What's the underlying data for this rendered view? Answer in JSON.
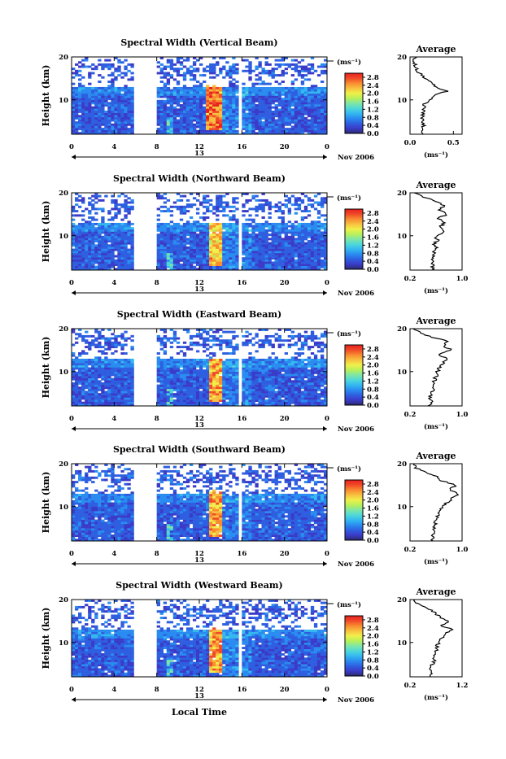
{
  "colors": {
    "colorbar": [
      "#2a2a6e",
      "#3b3bc8",
      "#2e5fe0",
      "#2a8cf0",
      "#34b8f0",
      "#4fd8d8",
      "#7fe6a6",
      "#b8f05a",
      "#f0f04a",
      "#f8c040",
      "#f88c30",
      "#f04a28",
      "#e82020"
    ],
    "heatmap_low": "#2f57d8",
    "heatmap_high": "#e83020",
    "axis": "#000000",
    "line": "#000000"
  },
  "chart_data": [
    {
      "type": "heatmap",
      "title": "Spectral Width (Vertical Beam)",
      "ylabel": "Height (km)",
      "xlabel": "",
      "x_ticks": [
        "0",
        "4",
        "8",
        "12",
        "16",
        "20",
        "0"
      ],
      "x_range": [
        0,
        24
      ],
      "date_marker": "13",
      "date_label": "Nov 2006",
      "y_ticks": [
        "20",
        "10"
      ],
      "y_range": [
        2,
        20
      ],
      "colorbar": {
        "unit": "(ms⁻¹)",
        "ticks": [
          "2.8",
          "2.4",
          "2.0",
          "1.6",
          "1.2",
          "0.8",
          "0.4",
          "0.0"
        ],
        "range": [
          0,
          3.0
        ]
      },
      "gaps": [
        [
          5.8,
          8.0
        ],
        [
          9.7,
          9.9
        ],
        [
          12.2,
          12.4
        ],
        [
          15.8,
          16.1
        ]
      ],
      "high_width_region": {
        "x": [
          12.5,
          14.2
        ],
        "y": [
          3,
          14
        ],
        "value": 2.8
      },
      "profile": {
        "title": "Average",
        "xlabel": "(ms⁻¹)",
        "x_ticks": [
          "0.0",
          "0.5"
        ],
        "x_range": [
          0.0,
          0.6
        ],
        "y_ticks": [
          "20",
          "10"
        ],
        "y_range": [
          2,
          20
        ],
        "heights": [
          2,
          3,
          4,
          5,
          6,
          7,
          8,
          9,
          10,
          11,
          12,
          13,
          14,
          15,
          16,
          17,
          18,
          19,
          20
        ],
        "values": [
          0.14,
          0.15,
          0.16,
          0.15,
          0.14,
          0.15,
          0.17,
          0.16,
          0.22,
          0.28,
          0.42,
          0.3,
          0.25,
          0.18,
          0.12,
          0.08,
          0.06,
          0.05,
          0.06
        ]
      }
    },
    {
      "type": "heatmap",
      "title": "Spectral Width (Northward Beam)",
      "ylabel": "Height (km)",
      "xlabel": "",
      "x_ticks": [
        "0",
        "4",
        "8",
        "12",
        "16",
        "20",
        "0"
      ],
      "x_range": [
        0,
        24
      ],
      "date_marker": "13",
      "date_label": "Nov 2006",
      "y_ticks": [
        "20",
        "10"
      ],
      "y_range": [
        2,
        20
      ],
      "colorbar": {
        "unit": "(ms⁻¹)",
        "ticks": [
          "2.8",
          "2.4",
          "2.0",
          "1.6",
          "1.2",
          "0.8",
          "0.4",
          "0.0"
        ],
        "range": [
          0,
          3.0
        ]
      },
      "gaps": [
        [
          5.8,
          8.0
        ],
        [
          9.7,
          9.9
        ],
        [
          12.2,
          12.4
        ],
        [
          15.8,
          16.1
        ]
      ],
      "high_width_region": {
        "x": [
          12.8,
          14.0
        ],
        "y": [
          3,
          13
        ],
        "value": 2.4
      },
      "profile": {
        "title": "Average",
        "xlabel": "(ms⁻¹)",
        "x_ticks": [
          "0.2",
          "1.0"
        ],
        "x_range": [
          0.2,
          1.0
        ],
        "y_ticks": [
          "20",
          "10"
        ],
        "y_range": [
          2,
          20
        ],
        "heights": [
          2,
          3,
          4,
          5,
          6,
          7,
          8,
          9,
          10,
          11,
          12,
          13,
          14,
          15,
          16,
          17,
          18,
          19,
          20
        ],
        "values": [
          0.55,
          0.55,
          0.56,
          0.55,
          0.57,
          0.6,
          0.58,
          0.62,
          0.6,
          0.72,
          0.65,
          0.74,
          0.62,
          0.78,
          0.66,
          0.72,
          0.6,
          0.4,
          0.25
        ]
      }
    },
    {
      "type": "heatmap",
      "title": "Spectral Width (Eastward Beam)",
      "ylabel": "Height (km)",
      "xlabel": "",
      "x_ticks": [
        "0",
        "4",
        "8",
        "12",
        "16",
        "20",
        "0"
      ],
      "x_range": [
        0,
        24
      ],
      "date_marker": "13",
      "date_label": "Nov 2006",
      "y_ticks": [
        "20",
        "10"
      ],
      "y_range": [
        2,
        20
      ],
      "colorbar": {
        "unit": "(ms⁻¹)",
        "ticks": [
          "2.8",
          "2.4",
          "2.0",
          "1.6",
          "1.2",
          "0.8",
          "0.4",
          "0.0"
        ],
        "range": [
          0,
          3.0
        ]
      },
      "gaps": [
        [
          5.8,
          8.0
        ],
        [
          9.7,
          9.9
        ],
        [
          12.2,
          12.4
        ],
        [
          15.8,
          16.1
        ]
      ],
      "high_width_region": {
        "x": [
          12.8,
          14.0
        ],
        "y": [
          3,
          13
        ],
        "value": 2.6
      },
      "profile": {
        "title": "Average",
        "xlabel": "(ms⁻¹)",
        "x_ticks": [
          "0.2",
          "1.0"
        ],
        "x_range": [
          0.2,
          1.0
        ],
        "y_ticks": [
          "20",
          "10"
        ],
        "y_range": [
          2,
          20
        ],
        "heights": [
          2,
          3,
          4,
          5,
          6,
          7,
          8,
          9,
          10,
          11,
          12,
          13,
          14,
          15,
          16,
          17,
          18,
          19,
          20
        ],
        "values": [
          0.5,
          0.52,
          0.5,
          0.54,
          0.56,
          0.55,
          0.58,
          0.6,
          0.62,
          0.65,
          0.7,
          0.8,
          0.62,
          0.85,
          0.7,
          0.78,
          0.55,
          0.35,
          0.25
        ]
      }
    },
    {
      "type": "heatmap",
      "title": "Spectral Width (Southward Beam)",
      "ylabel": "Height (km)",
      "xlabel": "",
      "x_ticks": [
        "0",
        "4",
        "8",
        "12",
        "16",
        "20",
        "0"
      ],
      "x_range": [
        0,
        24
      ],
      "date_marker": "13",
      "date_label": "Nov 2006",
      "y_ticks": [
        "20",
        "10"
      ],
      "y_range": [
        2,
        20
      ],
      "colorbar": {
        "unit": "(ms⁻¹)",
        "ticks": [
          "2.8",
          "2.4",
          "2.0",
          "1.6",
          "1.2",
          "0.8",
          "0.4",
          "0.0"
        ],
        "range": [
          0,
          3.0
        ]
      },
      "gaps": [
        [
          5.8,
          8.0
        ],
        [
          9.7,
          9.9
        ],
        [
          12.2,
          12.4
        ],
        [
          15.8,
          16.1
        ]
      ],
      "high_width_region": {
        "x": [
          12.8,
          14.0
        ],
        "y": [
          3,
          14
        ],
        "value": 2.6
      },
      "profile": {
        "title": "Average",
        "xlabel": "(ms⁻¹)",
        "x_ticks": [
          "0.2",
          "1.0"
        ],
        "x_range": [
          0.2,
          1.0
        ],
        "y_ticks": [
          "20",
          "10"
        ],
        "y_range": [
          2,
          20
        ],
        "heights": [
          2,
          3,
          4,
          5,
          6,
          7,
          8,
          9,
          10,
          11,
          12,
          13,
          14,
          15,
          16,
          17,
          18,
          19,
          20
        ],
        "values": [
          0.55,
          0.56,
          0.55,
          0.57,
          0.58,
          0.6,
          0.62,
          0.64,
          0.7,
          0.78,
          0.85,
          0.95,
          0.8,
          0.9,
          0.7,
          0.6,
          0.45,
          0.3,
          0.25
        ]
      }
    },
    {
      "type": "heatmap",
      "title": "Spectral Width (Westward Beam)",
      "ylabel": "Height (km)",
      "xlabel": "Local Time",
      "x_ticks": [
        "0",
        "4",
        "8",
        "12",
        "16",
        "20",
        "0"
      ],
      "x_range": [
        0,
        24
      ],
      "date_marker": "13",
      "date_label": "Nov 2006",
      "y_ticks": [
        "20",
        "10"
      ],
      "y_range": [
        2,
        20
      ],
      "colorbar": {
        "unit": "(ms⁻¹)",
        "ticks": [
          "2.8",
          "2.4",
          "2.0",
          "1.6",
          "1.2",
          "0.8",
          "0.4",
          "0.0"
        ],
        "range": [
          0,
          3.0
        ]
      },
      "gaps": [
        [
          5.8,
          8.0
        ],
        [
          9.7,
          9.9
        ],
        [
          12.2,
          12.4
        ],
        [
          15.8,
          16.1
        ]
      ],
      "high_width_region": {
        "x": [
          12.8,
          14.0
        ],
        "y": [
          3,
          14
        ],
        "value": 2.6
      },
      "profile": {
        "title": "Average",
        "xlabel": "(ms⁻¹)",
        "x_ticks": [
          "0.2",
          "1.2"
        ],
        "x_range": [
          0.2,
          1.2
        ],
        "y_ticks": [
          "20",
          "10"
        ],
        "y_range": [
          2,
          20
        ],
        "heights": [
          2,
          3,
          4,
          5,
          6,
          7,
          8,
          9,
          10,
          11,
          12,
          13,
          14,
          15,
          16,
          17,
          18,
          19,
          20
        ],
        "values": [
          0.6,
          0.62,
          0.6,
          0.64,
          0.66,
          0.65,
          0.7,
          0.72,
          0.75,
          0.8,
          0.85,
          1.0,
          0.8,
          0.95,
          0.75,
          0.7,
          0.5,
          0.35,
          0.3
        ]
      }
    }
  ]
}
